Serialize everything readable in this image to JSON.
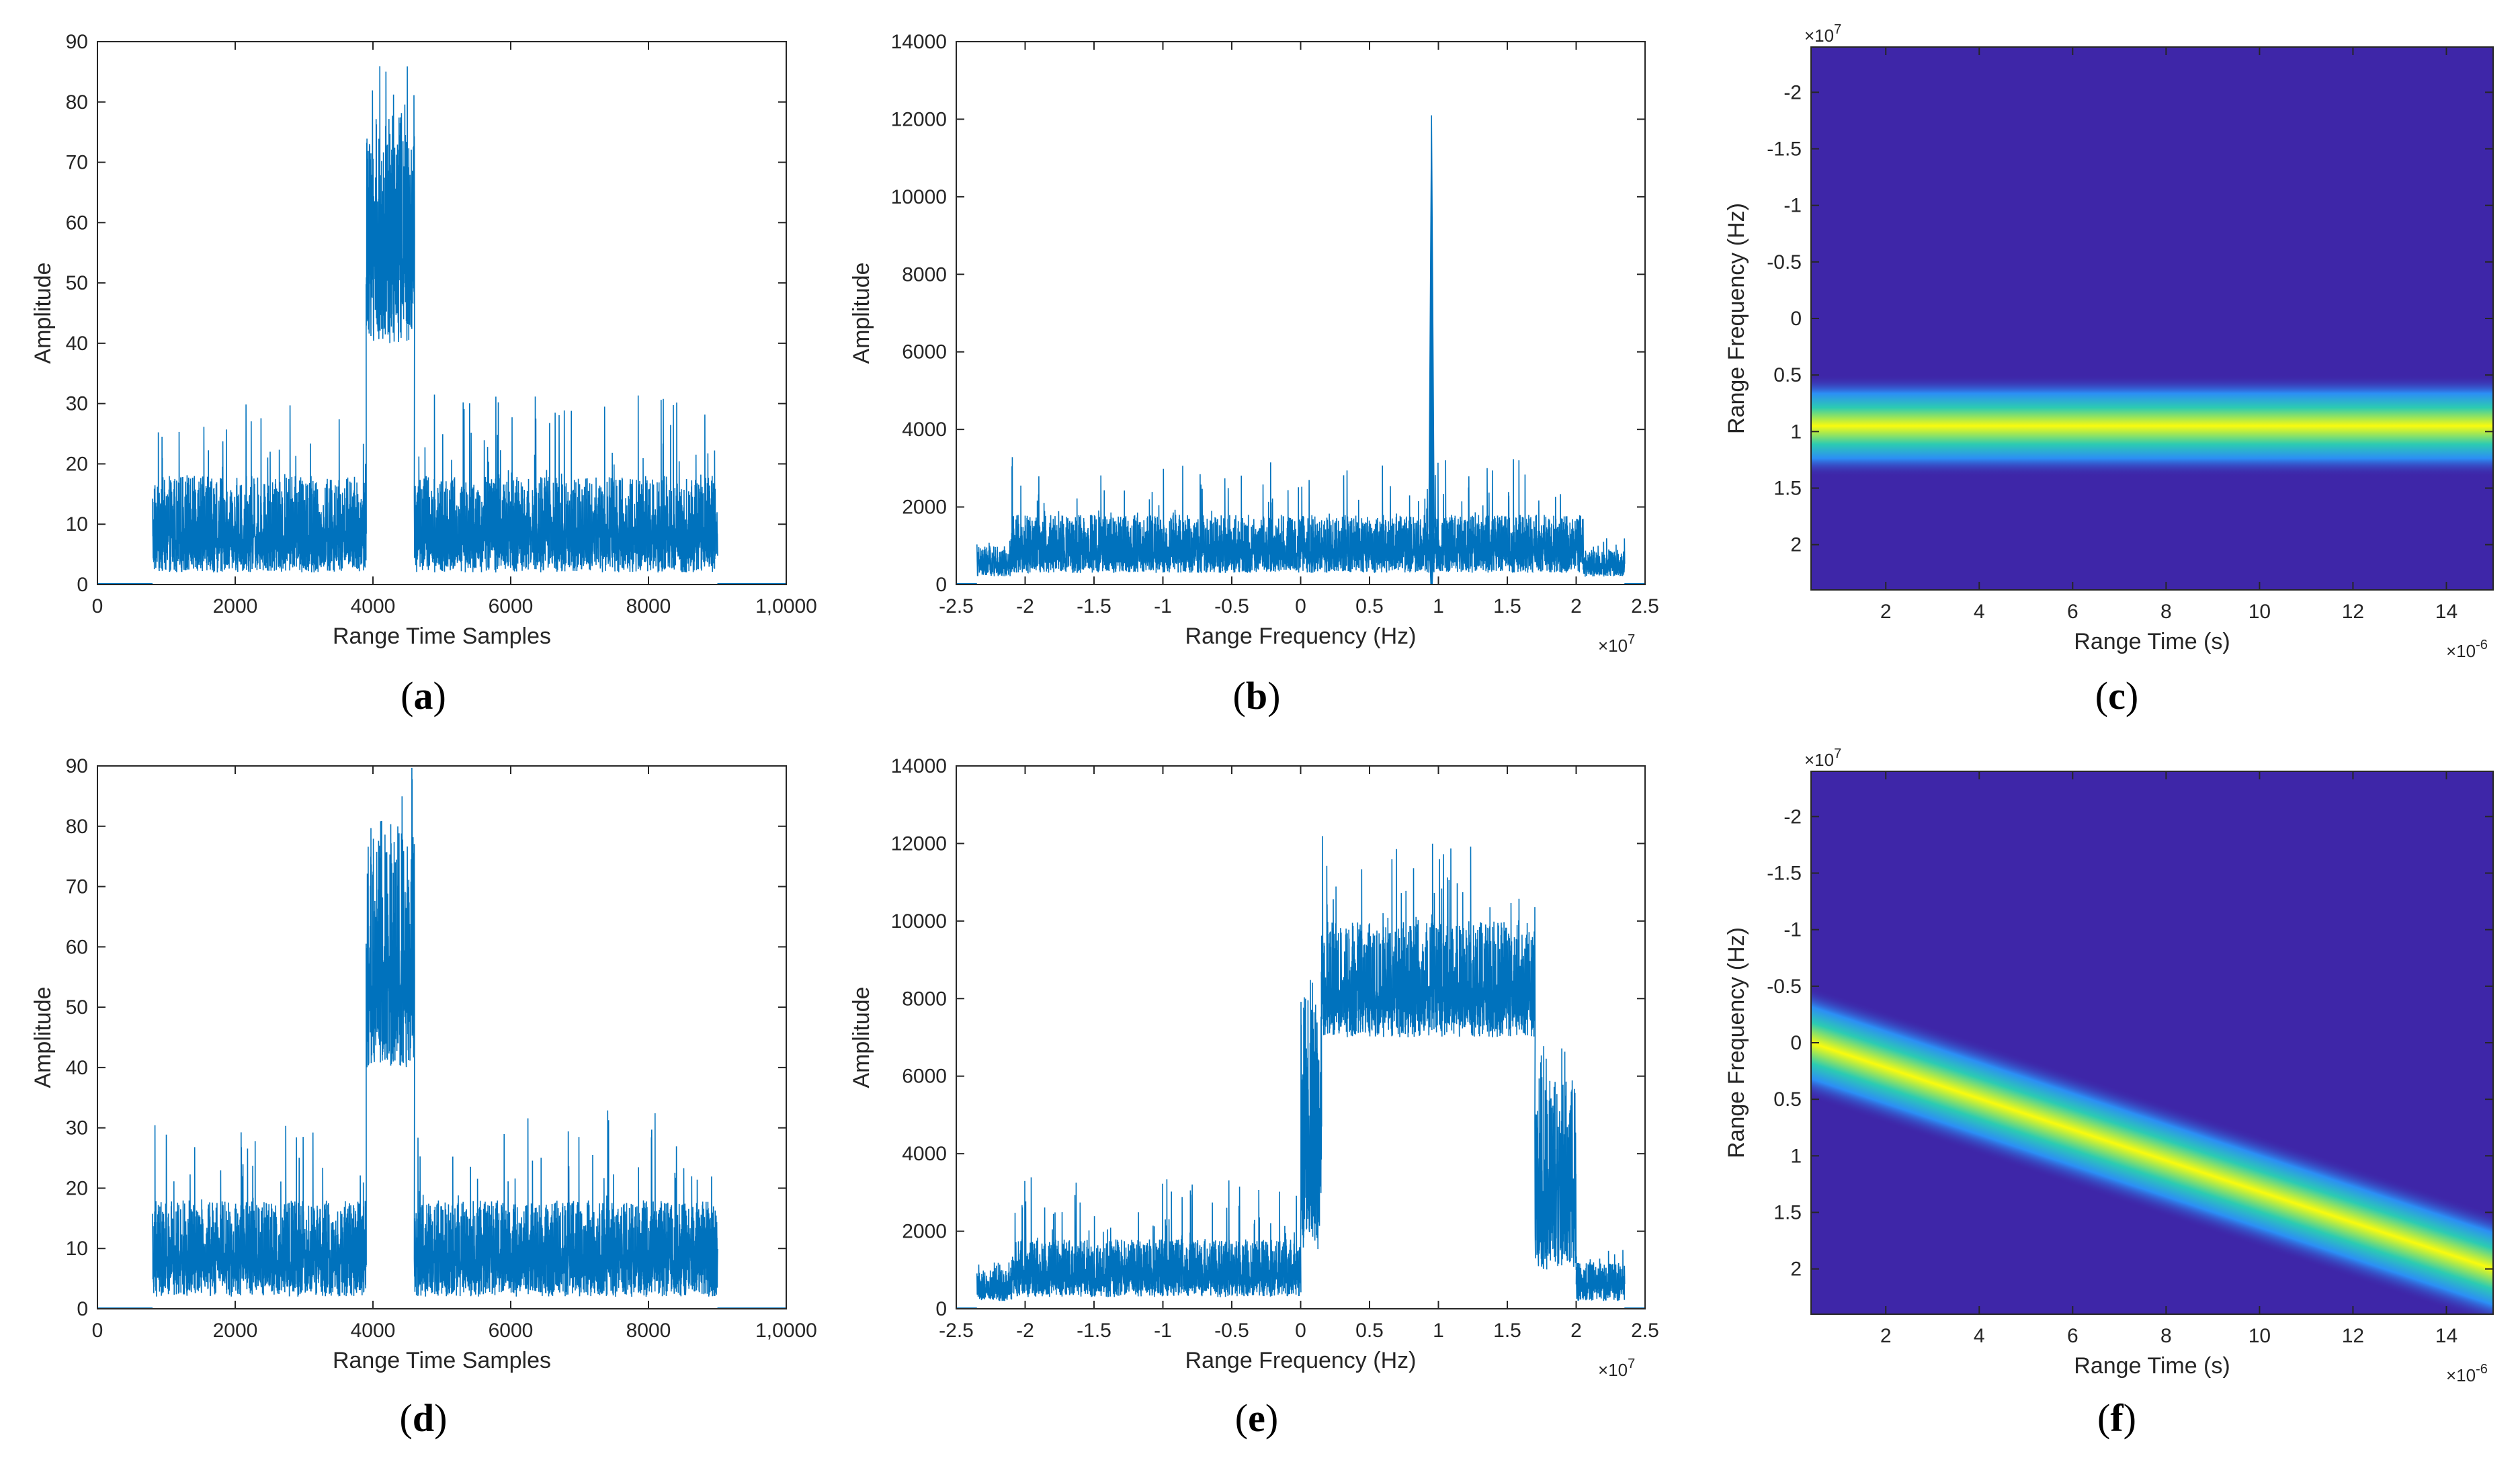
{
  "figure_panels": [
    "(a)",
    "(b)",
    "(c)",
    "(d)",
    "(e)",
    "(f)"
  ],
  "colors": {
    "line": "#0072bd",
    "heat_bg": "#3e26a8",
    "heat_low": "#2c8ef5",
    "heat_mid": "#2ccbb2",
    "heat_high": "#f9fb0e"
  },
  "chart_data": [
    {
      "id": "a",
      "panel_label": "(a)",
      "type": "line",
      "xlabel": "Range Time Samples",
      "ylabel": "Amplitude",
      "xlim": [
        0,
        10000
      ],
      "ylim": [
        0,
        90
      ],
      "xticks": [
        0,
        2000,
        4000,
        6000,
        8000,
        10000
      ],
      "xtick_labels": [
        "0",
        "2000",
        "4000",
        "6000",
        "8000",
        "1,0000"
      ],
      "yticks": [
        0,
        10,
        20,
        30,
        40,
        50,
        60,
        70,
        80,
        90
      ],
      "ytick_labels": [
        "0",
        "10",
        "20",
        "30",
        "40",
        "50",
        "60",
        "70",
        "80",
        "90"
      ],
      "segments": [
        {
          "x_start": 800,
          "x_end": 3900,
          "low": 2,
          "high": 18,
          "peak_max": 30
        },
        {
          "x_start": 3900,
          "x_end": 4600,
          "low": 40,
          "high": 78,
          "peak_max": 86
        },
        {
          "x_start": 4600,
          "x_end": 9000,
          "low": 2,
          "high": 18,
          "peak_max": 32
        }
      ]
    },
    {
      "id": "b",
      "panel_label": "(b)",
      "type": "line",
      "xlabel": "Range Frequency (Hz)",
      "ylabel": "Amplitude",
      "x_exponent": "×10^7",
      "xlim": [
        -2.5,
        2.5
      ],
      "ylim": [
        0,
        14000
      ],
      "xticks": [
        -2.5,
        -2,
        -1.5,
        -1,
        -0.5,
        0,
        0.5,
        1,
        1.5,
        2,
        2.5
      ],
      "xtick_labels": [
        "-2.5",
        "-2",
        "-1.5",
        "-1",
        "-0.5",
        "0",
        "0.5",
        "1",
        "1.5",
        "2",
        "2.5"
      ],
      "yticks": [
        0,
        2000,
        4000,
        6000,
        8000,
        10000,
        12000,
        14000
      ],
      "ytick_labels": [
        "0",
        "2000",
        "4000",
        "6000",
        "8000",
        "10000",
        "12000",
        "14000"
      ],
      "segments": [
        {
          "x_start": -2.35,
          "x_end": -2.1,
          "low": 200,
          "high": 1000,
          "peak_max": 1200
        },
        {
          "x_start": -2.1,
          "x_end": 2.05,
          "low": 300,
          "high": 1800,
          "peak_max": 3300
        },
        {
          "x_start": 2.05,
          "x_end": 2.35,
          "low": 200,
          "high": 900,
          "peak_max": 1200
        }
      ],
      "spike": {
        "x": 0.95,
        "value": 12100
      }
    },
    {
      "id": "c",
      "panel_label": "(c)",
      "type": "heatmap",
      "xlabel": "Range Time (s)",
      "ylabel": "Range Frequency (Hz)",
      "x_exponent": "×10^-6",
      "y_exponent": "×10^7",
      "xlim": [
        0.4,
        15
      ],
      "ylim": [
        -2.4,
        2.4
      ],
      "y_reversed": true,
      "xticks": [
        2,
        4,
        6,
        8,
        10,
        12,
        14
      ],
      "xtick_labels": [
        "2",
        "4",
        "6",
        "8",
        "10",
        "12",
        "14"
      ],
      "yticks": [
        -2,
        -1.5,
        -1,
        -0.5,
        0,
        0.5,
        1,
        1.5,
        2
      ],
      "ytick_labels": [
        "-2",
        "-1.5",
        "-1",
        "-0.5",
        "0",
        "0.5",
        "1",
        "1.5",
        "2"
      ],
      "ridge": {
        "freq_start": 0.95,
        "freq_end": 0.95,
        "width": 0.45
      }
    },
    {
      "id": "d",
      "panel_label": "(d)",
      "type": "line",
      "xlabel": "Range Time Samples",
      "ylabel": "Amplitude",
      "xlim": [
        0,
        10000
      ],
      "ylim": [
        0,
        90
      ],
      "xticks": [
        0,
        2000,
        4000,
        6000,
        8000,
        10000
      ],
      "xtick_labels": [
        "0",
        "2000",
        "4000",
        "6000",
        "8000",
        "1,0000"
      ],
      "yticks": [
        0,
        10,
        20,
        30,
        40,
        50,
        60,
        70,
        80,
        90
      ],
      "ytick_labels": [
        "0",
        "10",
        "20",
        "30",
        "40",
        "50",
        "60",
        "70",
        "80",
        "90"
      ],
      "segments": [
        {
          "x_start": 800,
          "x_end": 3900,
          "low": 2,
          "high": 18,
          "peak_max": 31
        },
        {
          "x_start": 3900,
          "x_end": 4600,
          "low": 40,
          "high": 80,
          "peak_max": 90
        },
        {
          "x_start": 4600,
          "x_end": 9000,
          "low": 2,
          "high": 18,
          "peak_max": 33
        }
      ]
    },
    {
      "id": "e",
      "panel_label": "(e)",
      "type": "line",
      "xlabel": "Range Frequency (Hz)",
      "ylabel": "Amplitude",
      "x_exponent": "×10^7",
      "xlim": [
        -2.5,
        2.5
      ],
      "ylim": [
        0,
        14000
      ],
      "xticks": [
        -2.5,
        -2,
        -1.5,
        -1,
        -0.5,
        0,
        0.5,
        1,
        1.5,
        2,
        2.5
      ],
      "xtick_labels": [
        "-2.5",
        "-2",
        "-1.5",
        "-1",
        "-0.5",
        "0",
        "0.5",
        "1",
        "1.5",
        "2",
        "2.5"
      ],
      "yticks": [
        0,
        2000,
        4000,
        6000,
        8000,
        10000,
        12000,
        14000
      ],
      "ytick_labels": [
        "0",
        "2000",
        "4000",
        "6000",
        "8000",
        "10000",
        "12000",
        "14000"
      ],
      "segments": [
        {
          "x_start": -2.35,
          "x_end": -2.1,
          "low": 200,
          "high": 1000,
          "peak_max": 1300
        },
        {
          "x_start": -2.1,
          "x_end": 0.0,
          "low": 300,
          "high": 1800,
          "peak_max": 3400
        },
        {
          "x_start": 0.0,
          "x_end": 0.15,
          "low": 1500,
          "high": 8000,
          "peak_max": 9000
        },
        {
          "x_start": 0.15,
          "x_end": 1.7,
          "low": 7000,
          "high": 10000,
          "peak_max": 12200
        },
        {
          "x_start": 1.7,
          "x_end": 2.0,
          "low": 1000,
          "high": 6000,
          "peak_max": 7000
        },
        {
          "x_start": 2.0,
          "x_end": 2.35,
          "low": 200,
          "high": 1200,
          "peak_max": 1600
        }
      ]
    },
    {
      "id": "f",
      "panel_label": "(f)",
      "type": "heatmap",
      "xlabel": "Range Time (s)",
      "ylabel": "Range Frequency (Hz)",
      "x_exponent": "×10^-6",
      "y_exponent": "×10^7",
      "xlim": [
        0.4,
        15
      ],
      "ylim": [
        -2.4,
        2.4
      ],
      "y_reversed": true,
      "xticks": [
        2,
        4,
        6,
        8,
        10,
        12,
        14
      ],
      "xtick_labels": [
        "2",
        "4",
        "6",
        "8",
        "10",
        "12",
        "14"
      ],
      "yticks": [
        -2,
        -1.5,
        -1,
        -0.5,
        0,
        0.5,
        1,
        1.5,
        2
      ],
      "ytick_labels": [
        "-2",
        "-1.5",
        "-1",
        "-0.5",
        "0",
        "0.5",
        "1",
        "1.5",
        "2"
      ],
      "ridge": {
        "freq_start": 0.0,
        "freq_end": 2.0,
        "width": 0.5
      }
    }
  ]
}
